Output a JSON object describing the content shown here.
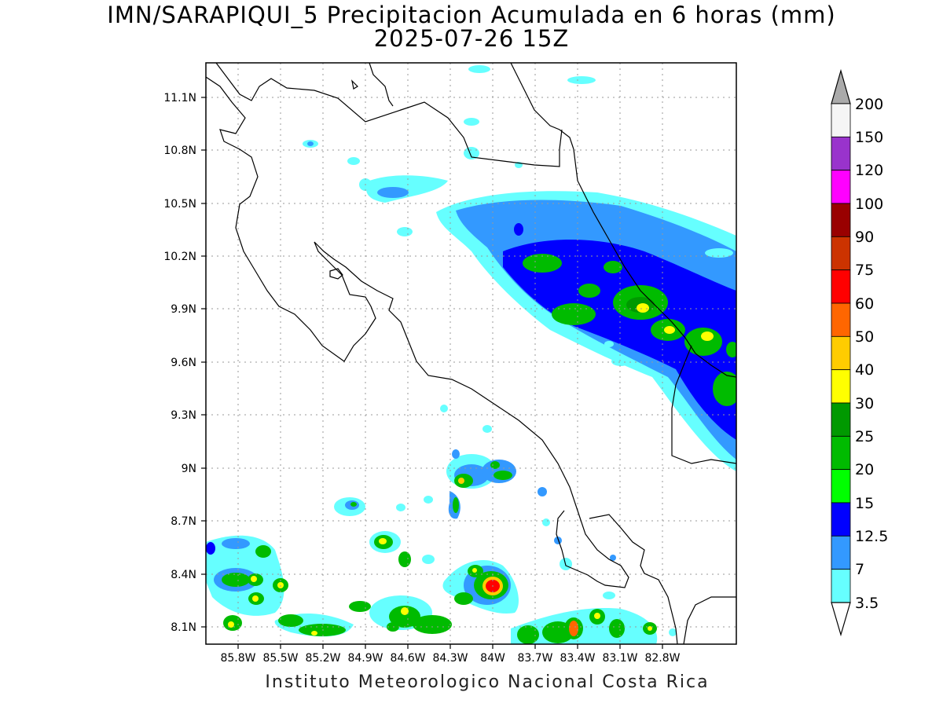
{
  "title": {
    "line1": "IMN/SARAPIQUI_5 Precipitacion Acumulada en 6 horas (mm)",
    "line2": "2025-07-26 15Z"
  },
  "footer": "Instituto Meteorologico Nacional Costa Rica",
  "axes": {
    "lat_ticks": [
      "11.1N",
      "10.8N",
      "10.5N",
      "10.2N",
      "9.9N",
      "9.6N",
      "9.3N",
      "9N",
      "8.7N",
      "8.4N",
      "8.1N"
    ],
    "lon_ticks": [
      "85.8W",
      "85.5W",
      "85.2W",
      "84.9W",
      "84.6W",
      "84.3W",
      "84W",
      "83.7W",
      "83.4W",
      "83.1W",
      "82.8W"
    ]
  },
  "colorbar": {
    "levels": [
      "200",
      "150",
      "120",
      "100",
      "90",
      "75",
      "60",
      "50",
      "40",
      "30",
      "25",
      "20",
      "15",
      "12.5",
      "7",
      "3.5"
    ],
    "colors": [
      "#f5f5f5",
      "#9933cc",
      "#ff00ff",
      "#990000",
      "#cc3300",
      "#ff0000",
      "#ff6600",
      "#ffcc00",
      "#ffff00",
      "#009900",
      "#00bb00",
      "#00ff00",
      "#0000ff",
      "#3399ff",
      "#66ffff"
    ],
    "top_arrow_color": "#aaaaaa",
    "bottom_arrow_color": "#ffffff"
  }
}
